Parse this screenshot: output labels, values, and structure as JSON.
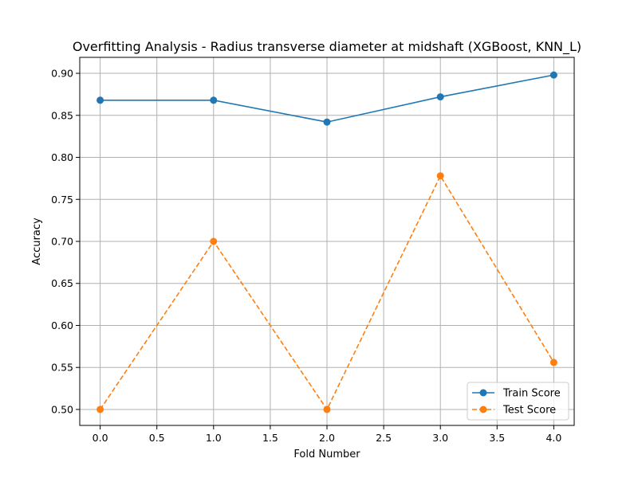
{
  "chart_data": {
    "type": "line",
    "title": "Overfitting Analysis - Radius transverse diameter at midshaft (XGBoost, KNN_L)",
    "xlabel": "Fold Number",
    "ylabel": "Accuracy",
    "x": [
      0,
      1,
      2,
      3,
      4
    ],
    "xlim": [
      -0.18,
      4.18
    ],
    "ylim": [
      0.481,
      0.919
    ],
    "xticks": [
      0.0,
      0.5,
      1.0,
      1.5,
      2.0,
      2.5,
      3.0,
      3.5,
      4.0
    ],
    "xtick_labels": [
      "0.0",
      "0.5",
      "1.0",
      "1.5",
      "2.0",
      "2.5",
      "3.0",
      "3.5",
      "4.0"
    ],
    "yticks": [
      0.5,
      0.55,
      0.6,
      0.65,
      0.7,
      0.75,
      0.8,
      0.85,
      0.9
    ],
    "ytick_labels": [
      "0.50",
      "0.55",
      "0.60",
      "0.65",
      "0.70",
      "0.75",
      "0.80",
      "0.85",
      "0.90"
    ],
    "grid": true,
    "legend": "lower-right",
    "series": [
      {
        "name": "Train Score",
        "values": [
          0.868,
          0.868,
          0.842,
          0.872,
          0.898
        ],
        "color": "#1f77b4",
        "line_style": "solid",
        "marker": "circle"
      },
      {
        "name": "Test Score",
        "values": [
          0.5,
          0.7,
          0.5,
          0.778,
          0.556
        ],
        "color": "#ff7f0e",
        "line_style": "dashed",
        "marker": "circle"
      }
    ]
  }
}
